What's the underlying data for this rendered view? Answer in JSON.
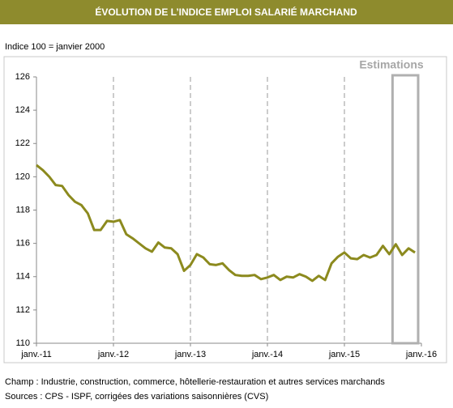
{
  "chart_data": {
    "type": "line",
    "title": "ÉVOLUTION DE L’INDICE EMPLOI SALARIÉ MARCHAND",
    "subtitle": "Indice 100 = janvier 2000",
    "annotation": "Estimations",
    "estimation_range": [
      2015.625,
      2015.958
    ],
    "footnotes": [
      "Champ : Industrie, construction, commerce, hôtellerie-restauration et autres services marchands",
      "Sources : CPS - ISPF, corrigées des variations saisonnières (CVS)"
    ],
    "x": [
      2011,
      2011.083,
      2011.167,
      2011.25,
      2011.333,
      2011.417,
      2011.5,
      2011.583,
      2011.667,
      2011.75,
      2011.833,
      2011.917,
      2012,
      2012.083,
      2012.167,
      2012.25,
      2012.333,
      2012.417,
      2012.5,
      2012.583,
      2012.667,
      2012.75,
      2012.833,
      2012.917,
      2013,
      2013.083,
      2013.167,
      2013.25,
      2013.333,
      2013.417,
      2013.5,
      2013.583,
      2013.667,
      2013.75,
      2013.833,
      2013.917,
      2014,
      2014.083,
      2014.167,
      2014.25,
      2014.333,
      2014.417,
      2014.5,
      2014.583,
      2014.667,
      2014.75,
      2014.833,
      2014.917,
      2015,
      2015.083,
      2015.167,
      2015.25,
      2015.333,
      2015.417,
      2015.5,
      2015.583,
      2015.667,
      2015.75,
      2015.833,
      2015.917
    ],
    "series": [
      {
        "color": "#8c8a1e",
        "values": [
          120.7,
          120.4,
          120.0,
          119.5,
          119.45,
          118.9,
          118.5,
          118.3,
          117.8,
          116.8,
          116.8,
          117.35,
          117.3,
          117.4,
          116.55,
          116.3,
          116.0,
          115.7,
          115.5,
          116.05,
          115.75,
          115.7,
          115.35,
          114.35,
          114.7,
          115.35,
          115.15,
          114.75,
          114.7,
          114.8,
          114.4,
          114.1,
          114.05,
          114.05,
          114.1,
          113.85,
          113.95,
          114.1,
          113.8,
          114.0,
          113.95,
          114.15,
          114.0,
          113.75,
          114.05,
          113.8,
          114.8,
          115.2,
          115.45,
          115.1,
          115.05,
          115.3,
          115.15,
          115.3,
          115.85,
          115.35,
          115.95,
          115.3,
          115.7,
          115.45
        ]
      }
    ],
    "xlim": [
      2011,
      2016
    ],
    "xticks": [
      {
        "value": 2011,
        "label": "janv.-11"
      },
      {
        "value": 2012,
        "label": "janv.-12"
      },
      {
        "value": 2013,
        "label": "janv.-13"
      },
      {
        "value": 2014,
        "label": "janv.-14"
      },
      {
        "value": 2015,
        "label": "janv.-15"
      },
      {
        "value": 2016,
        "label": "janv.-16"
      }
    ],
    "ylim": [
      110,
      126
    ],
    "yticks": [
      110,
      112,
      114,
      116,
      118,
      120,
      122,
      124,
      126
    ],
    "grid": "x-dashed"
  }
}
